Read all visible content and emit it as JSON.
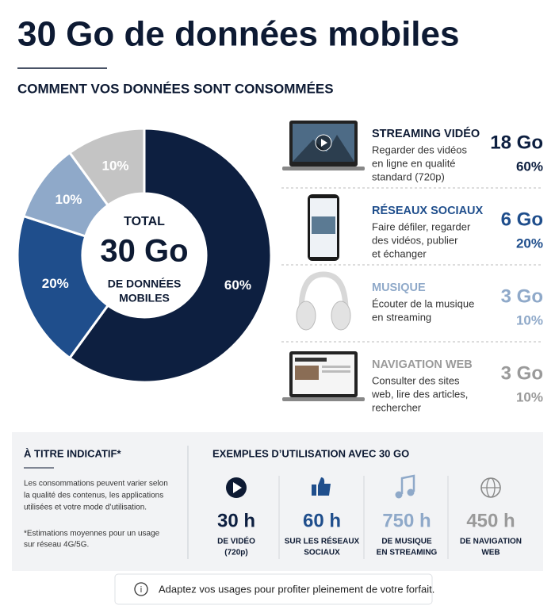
{
  "header": {
    "title": "30 Go de données mobiles",
    "subtitle": "COMMENT VOS DONNÉES SONT CONSOMMÉES"
  },
  "chart_data": {
    "type": "donut",
    "center": {
      "top": "TOTAL",
      "main": "30 Go",
      "bottom": [
        "DE DONNÉES",
        "MOBILES"
      ]
    },
    "categories": [
      "STREAMING VIDÉO",
      "RÉSEAUX SOCIAUX",
      "MUSIQUE",
      "NAVIGATION WEB"
    ],
    "values": [
      60,
      20,
      10,
      10
    ],
    "value_labels": [
      "60%",
      "20%",
      "10%",
      "10%"
    ],
    "colors": [
      "#0d1f40",
      "#1f4e8c",
      "#8fa9c9",
      "#c4c4c4"
    ]
  },
  "breakdown": [
    {
      "description": [
        "Regarder des vidéos",
        "en ligne en qualité",
        "standard (720p)"
      ],
      "amount": "18 Go"
    },
    {
      "description": [
        "Faire défiler, regarder",
        "des vidéos, publier",
        "et échanger"
      ],
      "amount": "6 Go"
    },
    {
      "description": [
        "Écouter de la musique",
        "en streaming"
      ],
      "amount": "3 Go"
    },
    {
      "description": [
        "Consulter des sites",
        "web, lire des articles,",
        "rechercher"
      ],
      "amount": "3 Go"
    }
  ],
  "notice": {
    "title": "À TITRE INDICATIF*",
    "text": [
      "Les consommations peuvent varier selon",
      "la qualité des contenus, les applications",
      "utilisées et votre mode d’utilisation."
    ],
    "footnote": [
      "*Estimations moyennes pour un usage",
      "sur réseau 4G/5G."
    ]
  },
  "examples": {
    "title": "EXEMPLES D’UTILISATION AVEC 30 GO",
    "items": [
      {
        "value": "30 h",
        "label": [
          "DE VIDÉO",
          "(720p)"
        ]
      },
      {
        "value": "60 h",
        "label": [
          "SUR LES RÉSEAUX",
          "SOCIAUX"
        ]
      },
      {
        "value": "750 h",
        "label": [
          "DE MUSIQUE",
          "EN STREAMING"
        ]
      },
      {
        "value": "450 h",
        "label": [
          "DE NAVIGATION",
          "WEB"
        ]
      }
    ]
  },
  "footer": {
    "text": "Adaptez vos usages pour profiter pleinement de votre forfait."
  }
}
